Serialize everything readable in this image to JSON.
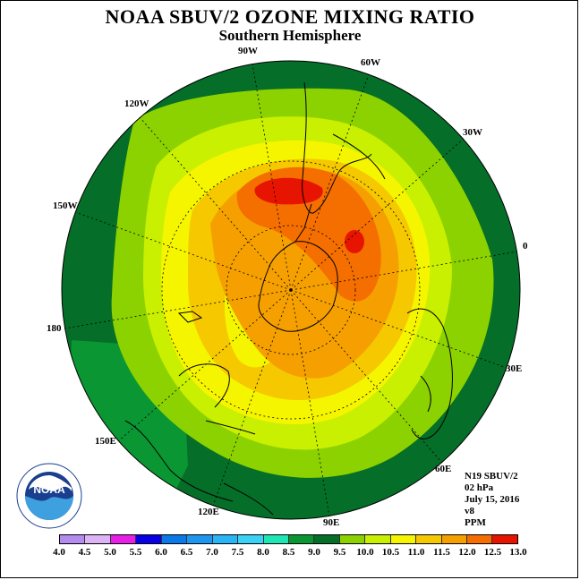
{
  "title": "NOAA SBUV/2 OZONE MIXING RATIO",
  "subtitle": "Southern Hemisphere",
  "longitude_labels": [
    "90W",
    "60W",
    "30W",
    "0",
    "30E",
    "60E",
    "90E",
    "120E",
    "150E",
    "180",
    "150W",
    "120W"
  ],
  "info": {
    "satellite": "N19 SBUV/2",
    "level": "02 hPa",
    "date": "July 15, 2016",
    "version": "v8",
    "units": "PPM"
  },
  "logo_text": "NOAA",
  "colorbar": {
    "labels": [
      "4.0",
      "4.5",
      "5.0",
      "5.5",
      "6.0",
      "6.5",
      "7.0",
      "7.5",
      "8.0",
      "8.5",
      "9.0",
      "9.5",
      "10.0",
      "10.5",
      "11.0",
      "11.5",
      "12.0",
      "12.5",
      "13.0"
    ],
    "colors": [
      "#b48ced",
      "#dcb4f5",
      "#e61ee6",
      "#0a00e6",
      "#0a78e6",
      "#1e96f0",
      "#28b4f5",
      "#3cd2f5",
      "#1ee6b4",
      "#0a9632",
      "#056e28",
      "#8cd200",
      "#c8f000",
      "#f5f500",
      "#f5c800",
      "#f5a000",
      "#f56e00",
      "#e61400",
      "#8c5028"
    ]
  }
}
